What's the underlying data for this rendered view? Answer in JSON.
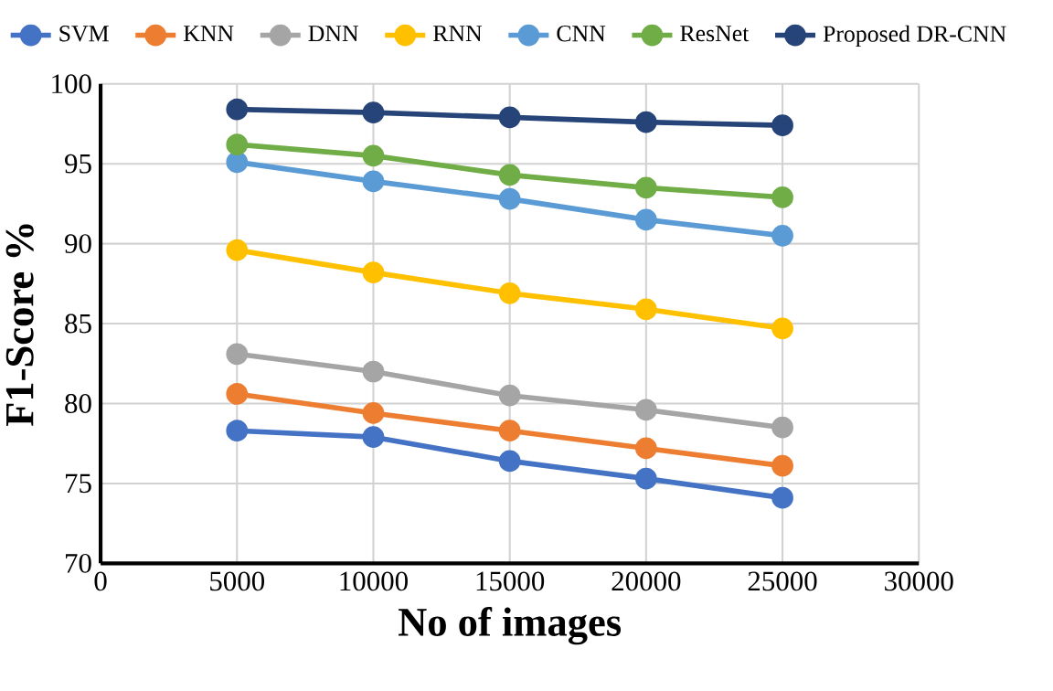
{
  "chart_data": {
    "type": "line",
    "xlabel": "No of images",
    "ylabel": "F1-Score %",
    "x": [
      5000,
      10000,
      15000,
      20000,
      25000
    ],
    "xlim": [
      0,
      30000
    ],
    "xticks": [
      0,
      5000,
      10000,
      15000,
      20000,
      25000,
      30000
    ],
    "ylim": [
      70,
      100
    ],
    "yticks": [
      70,
      75,
      80,
      85,
      90,
      95,
      100
    ],
    "grid": true,
    "legend": "top",
    "marker": "circle",
    "line_style": "solid",
    "series": [
      {
        "name": "SVM",
        "color": "#4472c4",
        "values": [
          78.3,
          77.9,
          76.4,
          75.3,
          74.1
        ]
      },
      {
        "name": "KNN",
        "color": "#ed7d31",
        "values": [
          80.6,
          79.4,
          78.3,
          77.2,
          76.1
        ]
      },
      {
        "name": "DNN",
        "color": "#a5a5a5",
        "values": [
          83.1,
          82.0,
          80.5,
          79.6,
          78.5
        ]
      },
      {
        "name": "RNN",
        "color": "#ffc000",
        "values": [
          89.6,
          88.2,
          86.9,
          85.9,
          84.7
        ]
      },
      {
        "name": "CNN",
        "color": "#5b9bd5",
        "values": [
          95.1,
          93.9,
          92.8,
          91.5,
          90.5
        ]
      },
      {
        "name": "ResNet",
        "color": "#70ad47",
        "values": [
          96.2,
          95.5,
          94.3,
          93.5,
          92.9
        ]
      },
      {
        "name": "Proposed DR-CNN",
        "color": "#264478",
        "values": [
          98.4,
          98.2,
          97.9,
          97.6,
          97.4
        ]
      }
    ]
  }
}
